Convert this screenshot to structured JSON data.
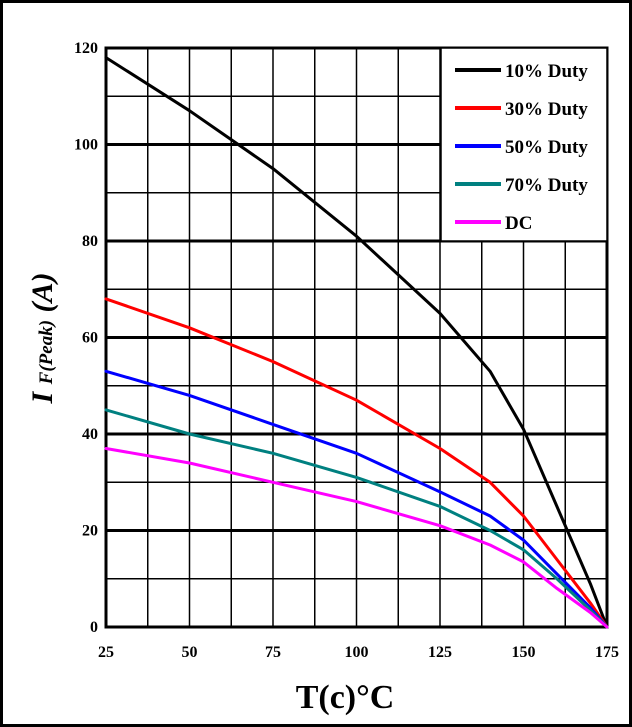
{
  "chart_data": {
    "type": "line",
    "xlabel": "T(c)°C",
    "ylabel_main": "I",
    "ylabel_sub": "F(Peak)",
    "ylabel_unit": "(A)",
    "xlim": [
      25,
      175
    ],
    "ylim": [
      0,
      120
    ],
    "x_ticks": [
      25,
      50,
      75,
      100,
      125,
      150,
      175
    ],
    "y_ticks": [
      0,
      20,
      40,
      60,
      80,
      100,
      120
    ],
    "x_tick_labels": [
      "25",
      "50",
      "75",
      "100",
      "125",
      "150",
      "175"
    ],
    "y_tick_labels": [
      "0",
      "20",
      "40",
      "60",
      "80",
      "100",
      "120"
    ],
    "grid": true,
    "legend_position": "top-right",
    "series": [
      {
        "name": "10% Duty",
        "color": "#000000",
        "x": [
          25,
          50,
          75,
          100,
          125,
          140,
          150,
          160,
          170,
          175
        ],
        "y": [
          118,
          107,
          95,
          81,
          65,
          53,
          41,
          25,
          9,
          0
        ]
      },
      {
        "name": "30% Duty",
        "color": "#ff0000",
        "x": [
          25,
          50,
          75,
          100,
          125,
          140,
          150,
          160,
          170,
          175
        ],
        "y": [
          68,
          62,
          55,
          47,
          37,
          30,
          23,
          14,
          5,
          0
        ]
      },
      {
        "name": "50% Duty",
        "color": "#0000ff",
        "x": [
          25,
          50,
          75,
          100,
          125,
          140,
          150,
          160,
          170,
          175
        ],
        "y": [
          53,
          48,
          42,
          36,
          28,
          23,
          18,
          11,
          4,
          0
        ]
      },
      {
        "name": "70% Duty",
        "color": "#008080",
        "x": [
          25,
          50,
          75,
          100,
          125,
          140,
          150,
          160,
          170,
          175
        ],
        "y": [
          45,
          40,
          36,
          31,
          25,
          20,
          16,
          10,
          3.5,
          0
        ]
      },
      {
        "name": "DC",
        "color": "#ff00ff",
        "x": [
          25,
          50,
          75,
          100,
          125,
          140,
          150,
          160,
          170,
          175
        ],
        "y": [
          37,
          34,
          30,
          26,
          21,
          17,
          13.5,
          8,
          3,
          0
        ]
      }
    ]
  }
}
